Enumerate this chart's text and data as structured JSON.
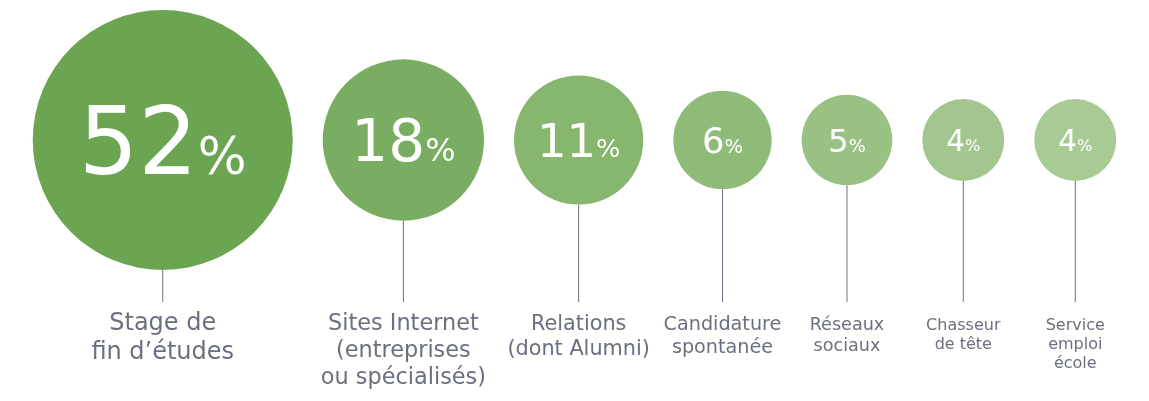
{
  "chart_data": {
    "type": "other",
    "categories": [
      "Stage de\nfin d’études",
      "Sites Internet\n(entreprises\nou spécialisés)",
      "Relations\n(dont Alumni)",
      "Candidature\nspontanée",
      "Réseaux\nsociaux",
      "Chasseur\nde tête",
      "Service\nemploi\nécole"
    ],
    "values": [
      52,
      18,
      11,
      6,
      5,
      4,
      4
    ],
    "colors": [
      "#6ca552",
      "#79ad62",
      "#87b66f",
      "#8fbb78",
      "#98c183",
      "#a2c68e",
      "#a8ca95"
    ],
    "value_labels": [
      "52%",
      "18%",
      "11%",
      "6%",
      "5%",
      "4%",
      "4%"
    ]
  }
}
